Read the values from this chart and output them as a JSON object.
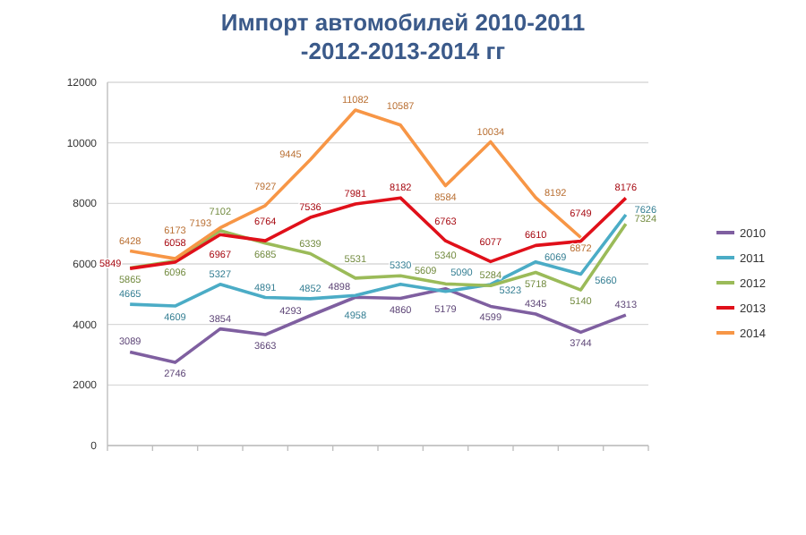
{
  "chart_data": {
    "type": "line",
    "title": "Импорт автомобилей 2010-2011 -2012-2013-2014 гг",
    "categories": [
      null,
      null,
      null,
      null,
      null,
      null,
      null,
      null,
      null,
      null,
      null,
      null
    ],
    "series": [
      {
        "name": "2010",
        "color": "#7f5fa0",
        "values": [
          3089,
          2746,
          3854,
          3663,
          4293,
          4898,
          4860,
          5179,
          4599,
          4345,
          3744,
          4313
        ]
      },
      {
        "name": "2011",
        "color": "#4bacc6",
        "values": [
          4665,
          4609,
          5327,
          4891,
          4852,
          4958,
          5330,
          5090,
          5323,
          6069,
          5660,
          7626
        ]
      },
      {
        "name": "2012",
        "color": "#9bbb59",
        "values": [
          5865,
          6096,
          7102,
          6685,
          6339,
          5531,
          5609,
          5340,
          5284,
          5718,
          5140,
          7324
        ]
      },
      {
        "name": "2013",
        "color": "#e0101a",
        "values": [
          5849,
          6058,
          6967,
          6764,
          7536,
          7981,
          8182,
          6763,
          6077,
          6610,
          6749,
          8176
        ]
      },
      {
        "name": "2014",
        "color": "#f79646",
        "values": [
          6428,
          6173,
          7193,
          7927,
          9445,
          11082,
          10587,
          8584,
          10034,
          8192,
          6872,
          null
        ]
      }
    ],
    "ylim": [
      0,
      12000
    ],
    "yticks": [
      0,
      2000,
      4000,
      6000,
      8000,
      10000,
      12000
    ],
    "grid": "y",
    "legend": "right",
    "data_labels": true,
    "marker": "none",
    "line_style": "solid"
  }
}
